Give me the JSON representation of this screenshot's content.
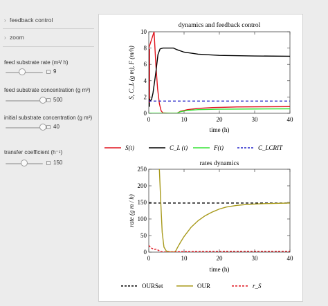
{
  "sections": [
    {
      "label": "feedback control"
    },
    {
      "label": "zoom"
    }
  ],
  "controls": [
    {
      "label": "feed substrate rate (m³/ h)",
      "value": "9",
      "fraction": 0.45
    },
    {
      "label": "feed substrate concentration (g m³)",
      "value": "500",
      "fraction": 1.0
    },
    {
      "label": "initial substrate concentration (g m³)",
      "value": "40",
      "fraction": 1.0
    },
    {
      "label": "transfer coefficient (h⁻¹)",
      "value": "150",
      "fraction": 0.5
    }
  ],
  "colors": {
    "red": "#e0141e",
    "black": "#000000",
    "green": "#37e337",
    "blue": "#2323c8",
    "olive": "#a89a1c"
  },
  "chart_data": [
    {
      "type": "line",
      "title": "dynamics and feedback control",
      "xlabel": "time (h)",
      "ylabel": "S, C_L (g m), F (m/h)",
      "xlim": [
        0,
        40
      ],
      "ylim": [
        0,
        10
      ],
      "xticks": [
        "0",
        "10",
        "20",
        "30",
        "40"
      ],
      "yticks": [
        "0",
        "2",
        "4",
        "6",
        "8",
        "10"
      ],
      "series": [
        {
          "name": "S(t)",
          "color": "red",
          "dash": "",
          "points": [
            [
              0,
              8
            ],
            [
              1.5,
              10
            ],
            [
              2,
              6
            ],
            [
              2.5,
              3
            ],
            [
              3,
              1.2
            ],
            [
              3.5,
              0.3
            ],
            [
              4,
              0.05
            ],
            [
              6,
              0
            ],
            [
              8,
              0
            ],
            [
              9,
              0.25
            ],
            [
              11,
              0.45
            ],
            [
              14,
              0.6
            ],
            [
              18,
              0.7
            ],
            [
              25,
              0.78
            ],
            [
              32,
              0.8
            ],
            [
              40,
              0.82
            ]
          ]
        },
        {
          "name": "C_L(t)",
          "color": "black",
          "dash": "",
          "points": [
            [
              0.2,
              1.8
            ],
            [
              0.4,
              1.5
            ],
            [
              0.8,
              1.7
            ],
            [
              1.2,
              2.5
            ],
            [
              2,
              5
            ],
            [
              2.6,
              7.2
            ],
            [
              3.2,
              7.9
            ],
            [
              4,
              8
            ],
            [
              7,
              8
            ],
            [
              8,
              7.8
            ],
            [
              10,
              7.5
            ],
            [
              14,
              7.25
            ],
            [
              20,
              7.1
            ],
            [
              30,
              7.03
            ],
            [
              40,
              7.0
            ]
          ]
        },
        {
          "name": "F(t)",
          "color": "green",
          "dash": "",
          "points": [
            [
              0,
              0
            ],
            [
              8,
              0
            ],
            [
              9,
              0.2
            ],
            [
              11,
              0.35
            ],
            [
              14,
              0.45
            ],
            [
              20,
              0.5
            ],
            [
              30,
              0.53
            ],
            [
              40,
              0.55
            ]
          ]
        },
        {
          "name": "C_LCRIT",
          "color": "blue",
          "dash": "4,3",
          "points": [
            [
              0,
              1.5
            ],
            [
              40,
              1.5
            ]
          ]
        }
      ],
      "extra_segments": [
        {
          "color": "black",
          "points": [
            [
              0.2,
              0.8
            ],
            [
              0.2,
              7.9
            ]
          ]
        },
        {
          "color": "red",
          "points": [
            [
              0.2,
              1.3
            ],
            [
              0.2,
              7.9
            ]
          ]
        }
      ],
      "legend": [
        {
          "label": "S(t)",
          "color": "red",
          "dash": ""
        },
        {
          "label": "C_L (t)",
          "color": "black",
          "dash": ""
        },
        {
          "label": "F(t)",
          "color": "green",
          "dash": ""
        },
        {
          "label": "C_LCRIT",
          "color": "blue",
          "dash": "3,2"
        }
      ]
    },
    {
      "type": "line",
      "title": "rates dynamics",
      "xlabel": "time (h)",
      "ylabel": "rate (g m / h)",
      "xlim": [
        0,
        40
      ],
      "ylim": [
        0,
        250
      ],
      "xticks": [
        "0",
        "10",
        "20",
        "30",
        "40"
      ],
      "yticks": [
        "0",
        "50",
        "100",
        "150",
        "200",
        "250"
      ],
      "series": [
        {
          "name": "OURSet",
          "color": "black",
          "dash": "4,3",
          "points": [
            [
              0,
              148
            ],
            [
              40,
              148
            ]
          ]
        },
        {
          "name": "OUR",
          "color": "olive",
          "dash": "",
          "points": [
            [
              3,
              250
            ],
            [
              3.4,
              150
            ],
            [
              3.8,
              60
            ],
            [
              4.3,
              15
            ],
            [
              5,
              3
            ],
            [
              6,
              1
            ],
            [
              7.5,
              1
            ],
            [
              8.2,
              15
            ],
            [
              9,
              30
            ],
            [
              10,
              47
            ],
            [
              12,
              75
            ],
            [
              14,
              95
            ],
            [
              16,
              110
            ],
            [
              18,
              121
            ],
            [
              20,
              130
            ],
            [
              22,
              136
            ],
            [
              25,
              141
            ],
            [
              28,
              144
            ],
            [
              32,
              146
            ],
            [
              36,
              147
            ],
            [
              40,
              148
            ]
          ]
        },
        {
          "name": "r_S",
          "color": "red",
          "dash": "3,2",
          "points": [
            [
              0,
              20
            ],
            [
              0.8,
              12
            ],
            [
              1.5,
              8
            ],
            [
              2.2,
              9
            ],
            [
              2.8,
              5
            ],
            [
              3.3,
              2
            ],
            [
              4,
              0.5
            ],
            [
              6,
              0
            ],
            [
              8,
              1
            ],
            [
              10,
              1.5
            ],
            [
              15,
              2
            ],
            [
              25,
              2.5
            ],
            [
              40,
              2.5
            ]
          ]
        }
      ],
      "legend": [
        {
          "label": "OURSet",
          "color": "black",
          "dash": "3,2"
        },
        {
          "label": "OUR",
          "color": "olive",
          "dash": ""
        },
        {
          "label": "r_S",
          "color": "red",
          "dash": "3,2"
        }
      ]
    }
  ]
}
